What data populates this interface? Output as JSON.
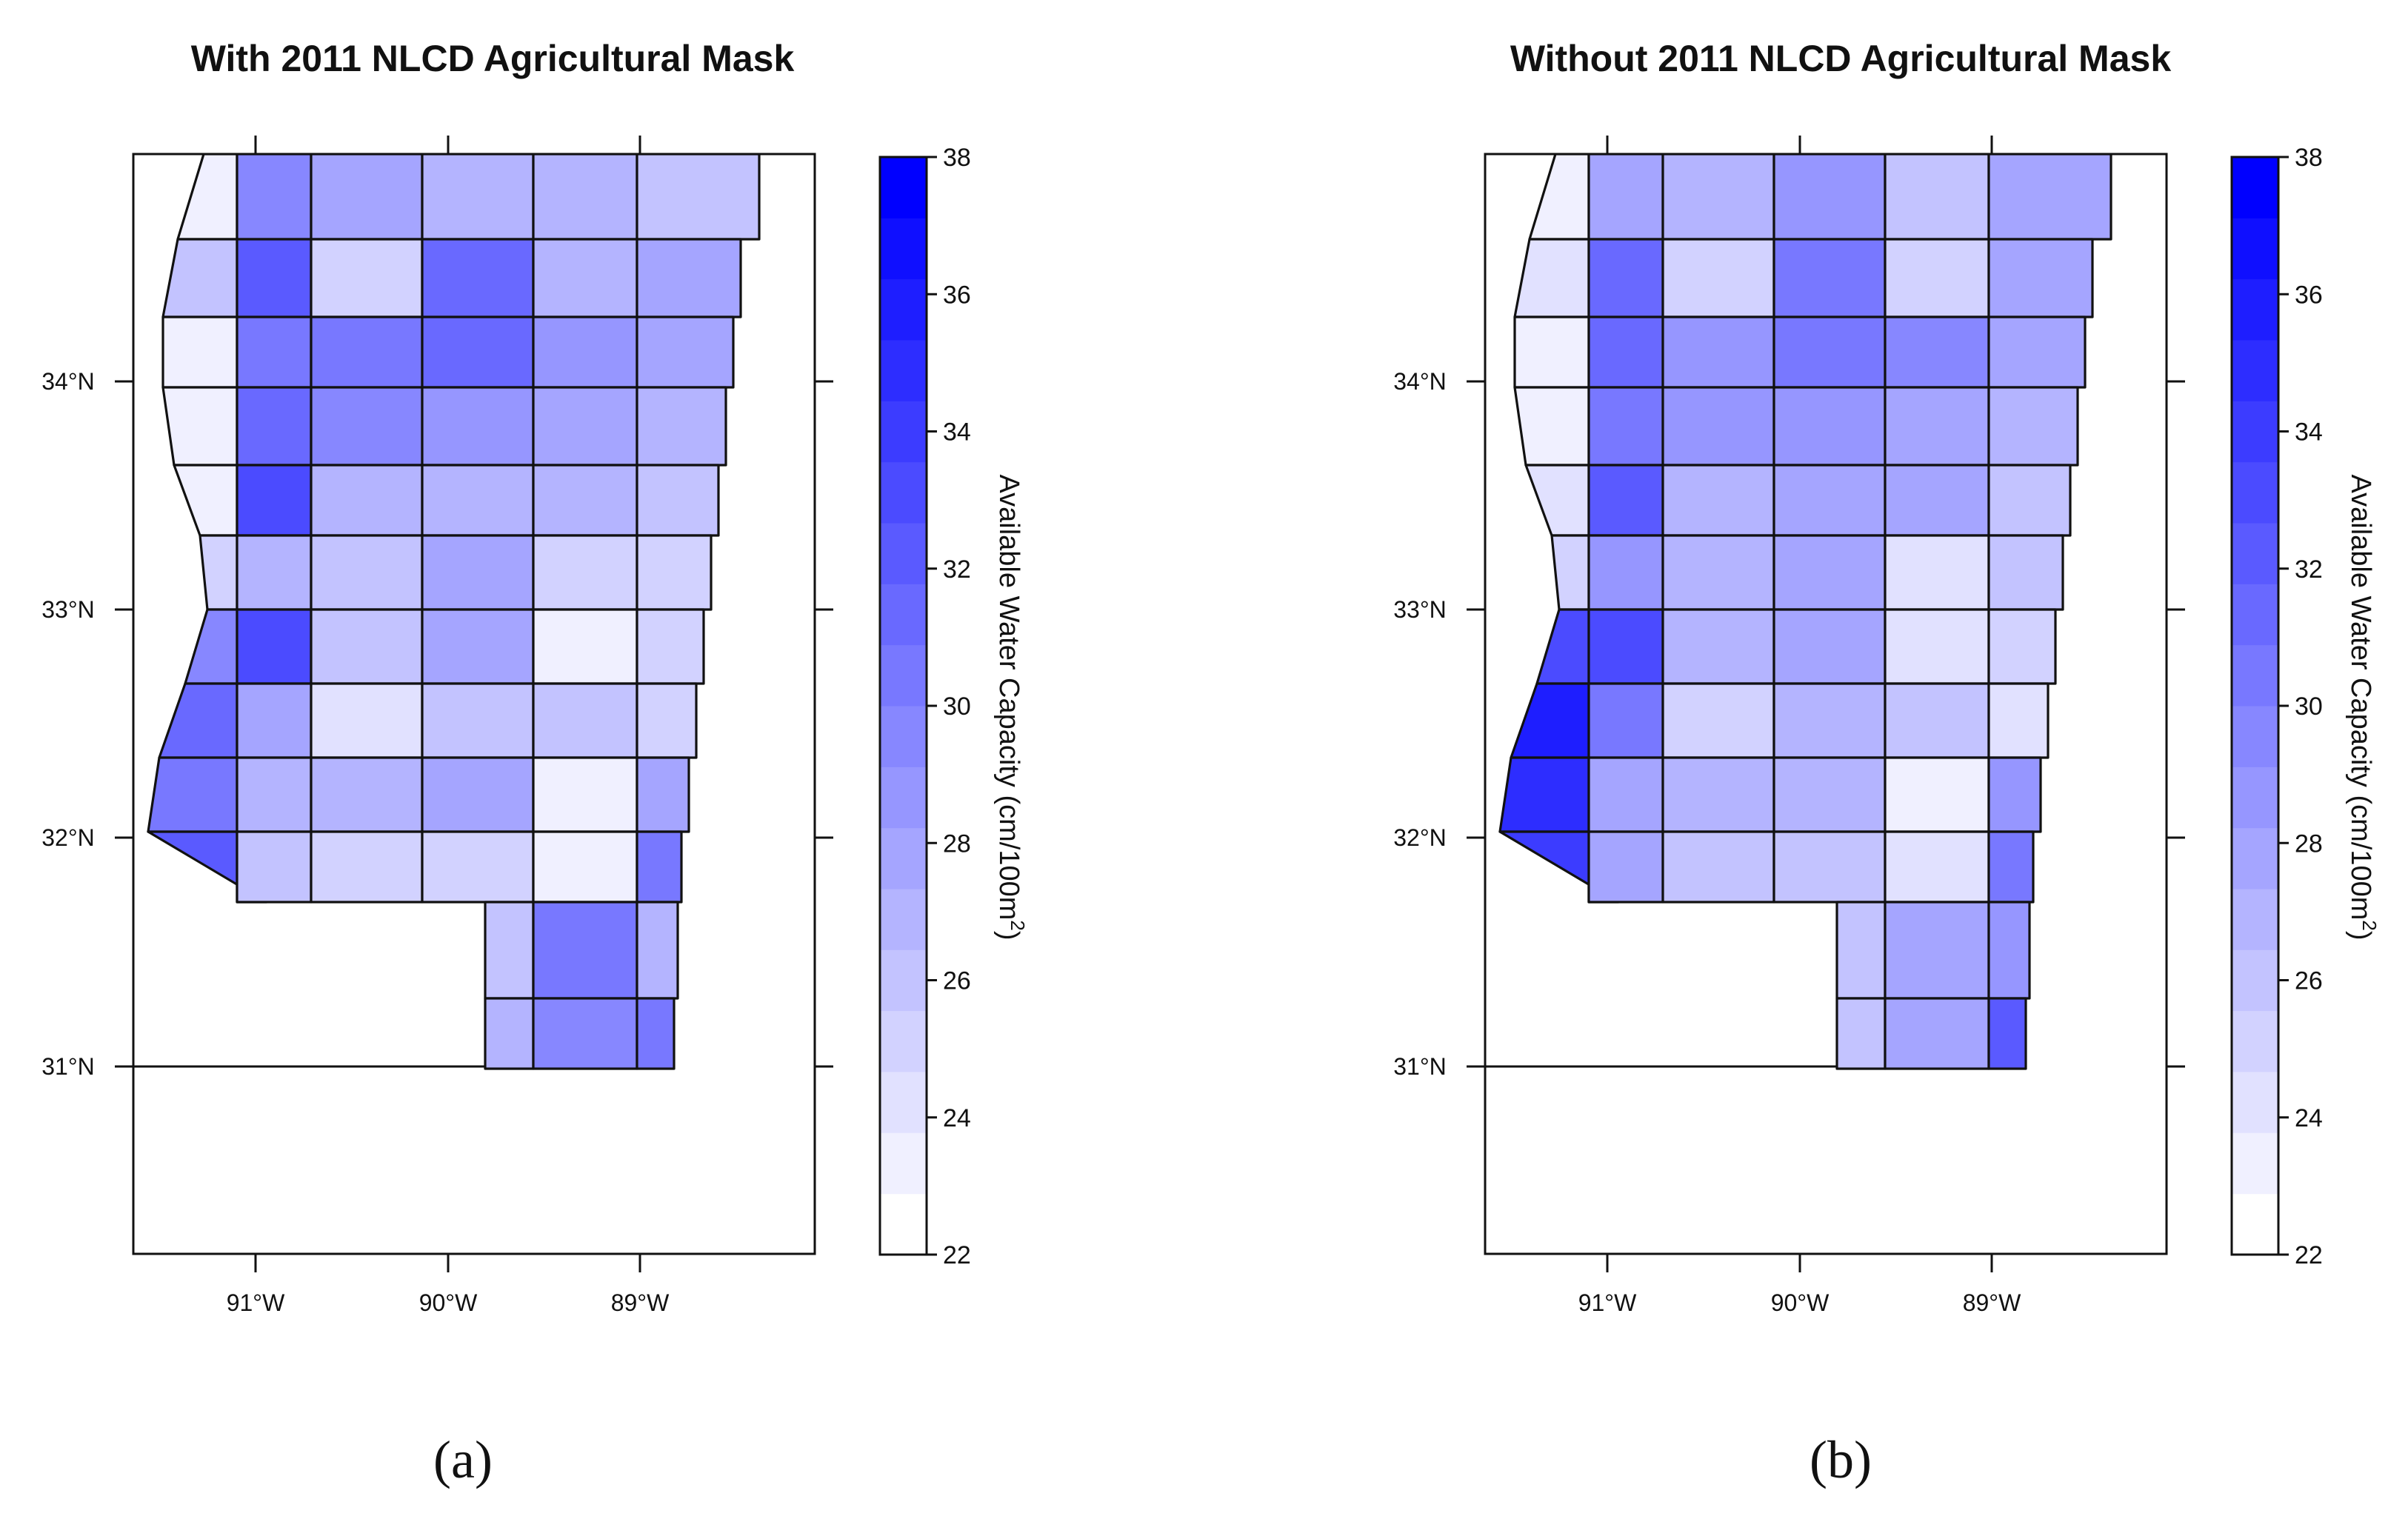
{
  "panels": [
    {
      "title": "With 2011 NLCD Agricultural Mask",
      "caption": "(a)",
      "lat_labels": [
        "34°N",
        "33°N",
        "32°N",
        "31°N"
      ],
      "lon_labels": [
        "91°W",
        "90°W",
        "89°W"
      ],
      "colorbar": {
        "label_main": "Available Water Capacity (cm/100m",
        "label_sup": "2",
        "label_end": ")",
        "ticks": [
          "38",
          "36",
          "34",
          "32",
          "30",
          "28",
          "26",
          "24",
          "22"
        ]
      }
    },
    {
      "title": "Without 2011 NLCD Agricultural Mask",
      "caption": "(b)",
      "lat_labels": [
        "34°N",
        "33°N",
        "32°N",
        "31°N"
      ],
      "lon_labels": [
        "91°W",
        "90°W",
        "89°W"
      ],
      "colorbar": {
        "label_main": "Available Water Capacity (cm/100m",
        "label_sup": "2",
        "label_end": ")",
        "ticks": [
          "38",
          "36",
          "34",
          "32",
          "30",
          "28",
          "26",
          "24",
          "22"
        ]
      }
    }
  ],
  "colors": {
    "low": "#ffffff",
    "high": "#0000ff",
    "outline": "#111111"
  },
  "chart_data": {
    "type": "heatmap",
    "value_range": [
      22,
      38
    ],
    "colorbar_steps": 18,
    "lon_range": [
      -91.65,
      -88.1
    ],
    "lat_range": [
      30.17,
      35.0
    ],
    "county_grid_values": [
      {
        "panel": "With 2011 NLCD Agricultural Mask",
        "rows": [
          [
            22.8,
            29.5,
            27.5,
            27.0,
            26.5,
            25.5
          ],
          [
            25.5,
            32.0,
            25.0,
            31.0,
            26.5,
            27.5
          ],
          [
            23.0,
            30.0,
            30.5,
            31.0,
            29.0,
            28.0
          ],
          [
            22.8,
            31.5,
            29.5,
            28.5,
            28.0,
            27.0
          ],
          [
            23.0,
            33.0,
            27.0,
            26.5,
            26.5,
            25.5
          ],
          [
            24.5,
            27.0,
            26.0,
            28.0,
            24.5,
            24.5
          ],
          [
            29.5,
            33.0,
            26.0,
            27.5,
            22.5,
            24.5
          ],
          [
            31.0,
            28.0,
            24.0,
            26.0,
            25.5,
            25.0
          ],
          [
            30.0,
            27.0,
            27.0,
            27.5,
            22.5,
            28.0
          ],
          [
            32.0,
            26.0,
            24.5,
            24.5,
            23.0,
            30.0
          ],
          [
            null,
            null,
            null,
            25.5,
            30.0,
            27.0
          ],
          [
            null,
            null,
            null,
            26.5,
            29.5,
            30.5
          ]
        ]
      },
      {
        "panel": "Without 2011 NLCD Agricultural Mask",
        "rows": [
          [
            22.8,
            27.5,
            27.0,
            28.5,
            26.0,
            28.0
          ],
          [
            23.5,
            31.0,
            25.0,
            30.5,
            25.0,
            27.5
          ],
          [
            22.8,
            31.0,
            29.0,
            30.5,
            29.5,
            28.0
          ],
          [
            22.8,
            30.5,
            29.0,
            28.5,
            27.5,
            26.5
          ],
          [
            24.0,
            32.5,
            27.0,
            28.0,
            27.5,
            26.0
          ],
          [
            25.0,
            29.0,
            27.0,
            27.5,
            24.0,
            25.5
          ],
          [
            33.0,
            33.0,
            26.5,
            28.0,
            23.5,
            25.0
          ],
          [
            36.5,
            30.0,
            24.5,
            27.0,
            25.5,
            24.0
          ],
          [
            35.0,
            28.0,
            27.0,
            26.5,
            23.0,
            29.0
          ],
          [
            34.5,
            27.5,
            26.0,
            25.5,
            23.5,
            30.0
          ],
          [
            null,
            null,
            null,
            25.5,
            28.0,
            29.0
          ],
          [
            null,
            null,
            null,
            26.0,
            27.5,
            32.0
          ]
        ]
      }
    ]
  }
}
